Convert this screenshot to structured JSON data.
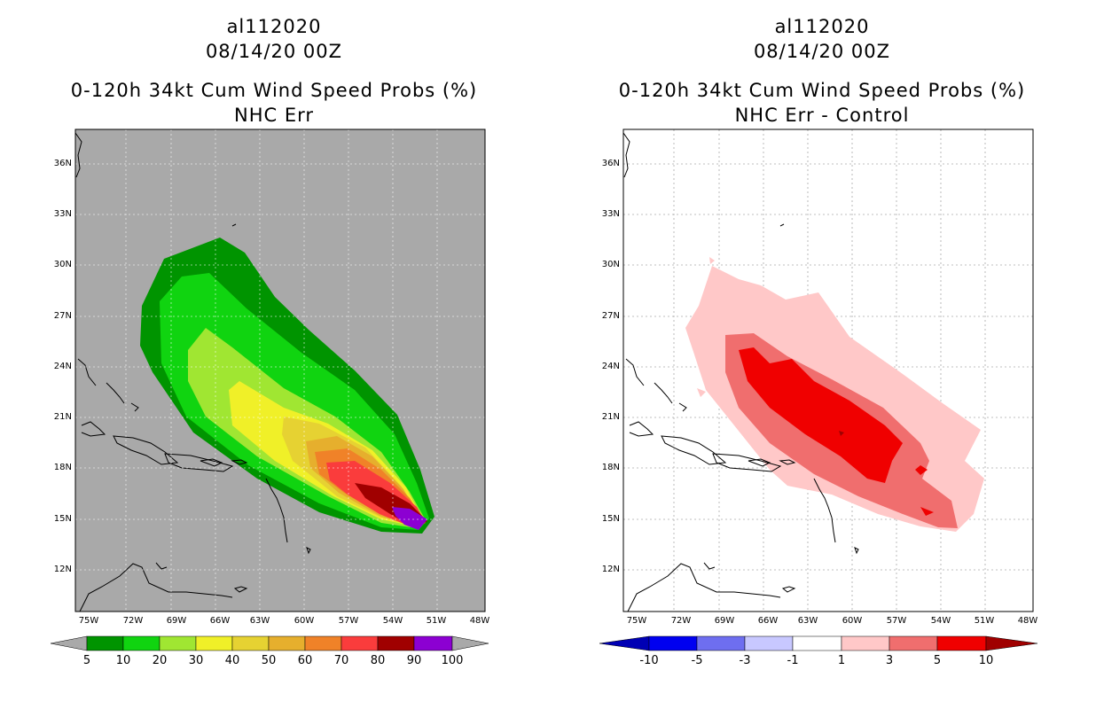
{
  "panels": [
    {
      "storm_id": "al112020",
      "datetime": "08/14/20 00Z",
      "product": "0-120h 34kt Cum Wind Speed Probs (%)",
      "subtitle": "NHC Err",
      "latitudes": [
        "36N",
        "33N",
        "30N",
        "27N",
        "24N",
        "21N",
        "18N",
        "15N",
        "12N"
      ],
      "longitudes": [
        "75W",
        "72W",
        "69W",
        "66W",
        "63W",
        "60W",
        "57W",
        "54W",
        "51W",
        "48W"
      ],
      "colorbar": {
        "labels": [
          "5",
          "10",
          "20",
          "30",
          "40",
          "50",
          "60",
          "70",
          "80",
          "90",
          "100"
        ],
        "colors": [
          "#009400",
          "#10d410",
          "#a0e632",
          "#f0f028",
          "#e6d232",
          "#e6af2d",
          "#f08228",
          "#fa3c3c",
          "#a00000",
          "#8c00d2"
        ]
      }
    },
    {
      "storm_id": "al112020",
      "datetime": "08/14/20 00Z",
      "product": "0-120h 34kt Cum Wind Speed Probs (%)",
      "subtitle": "NHC Err - Control",
      "latitudes": [
        "36N",
        "33N",
        "30N",
        "27N",
        "24N",
        "21N",
        "18N",
        "15N",
        "12N"
      ],
      "longitudes": [
        "75W",
        "72W",
        "69W",
        "66W",
        "63W",
        "60W",
        "57W",
        "54W",
        "51W",
        "48W"
      ],
      "colorbar": {
        "labels": [
          "-10",
          "-5",
          "-3",
          "-1",
          "1",
          "3",
          "5",
          "10"
        ],
        "colors": [
          "#0000b4",
          "#0000f0",
          "#6e6ef0",
          "#c8c8ff",
          "#ffffff",
          "#ffc8c8",
          "#f06e6e",
          "#f00000"
        ]
      }
    }
  ]
}
